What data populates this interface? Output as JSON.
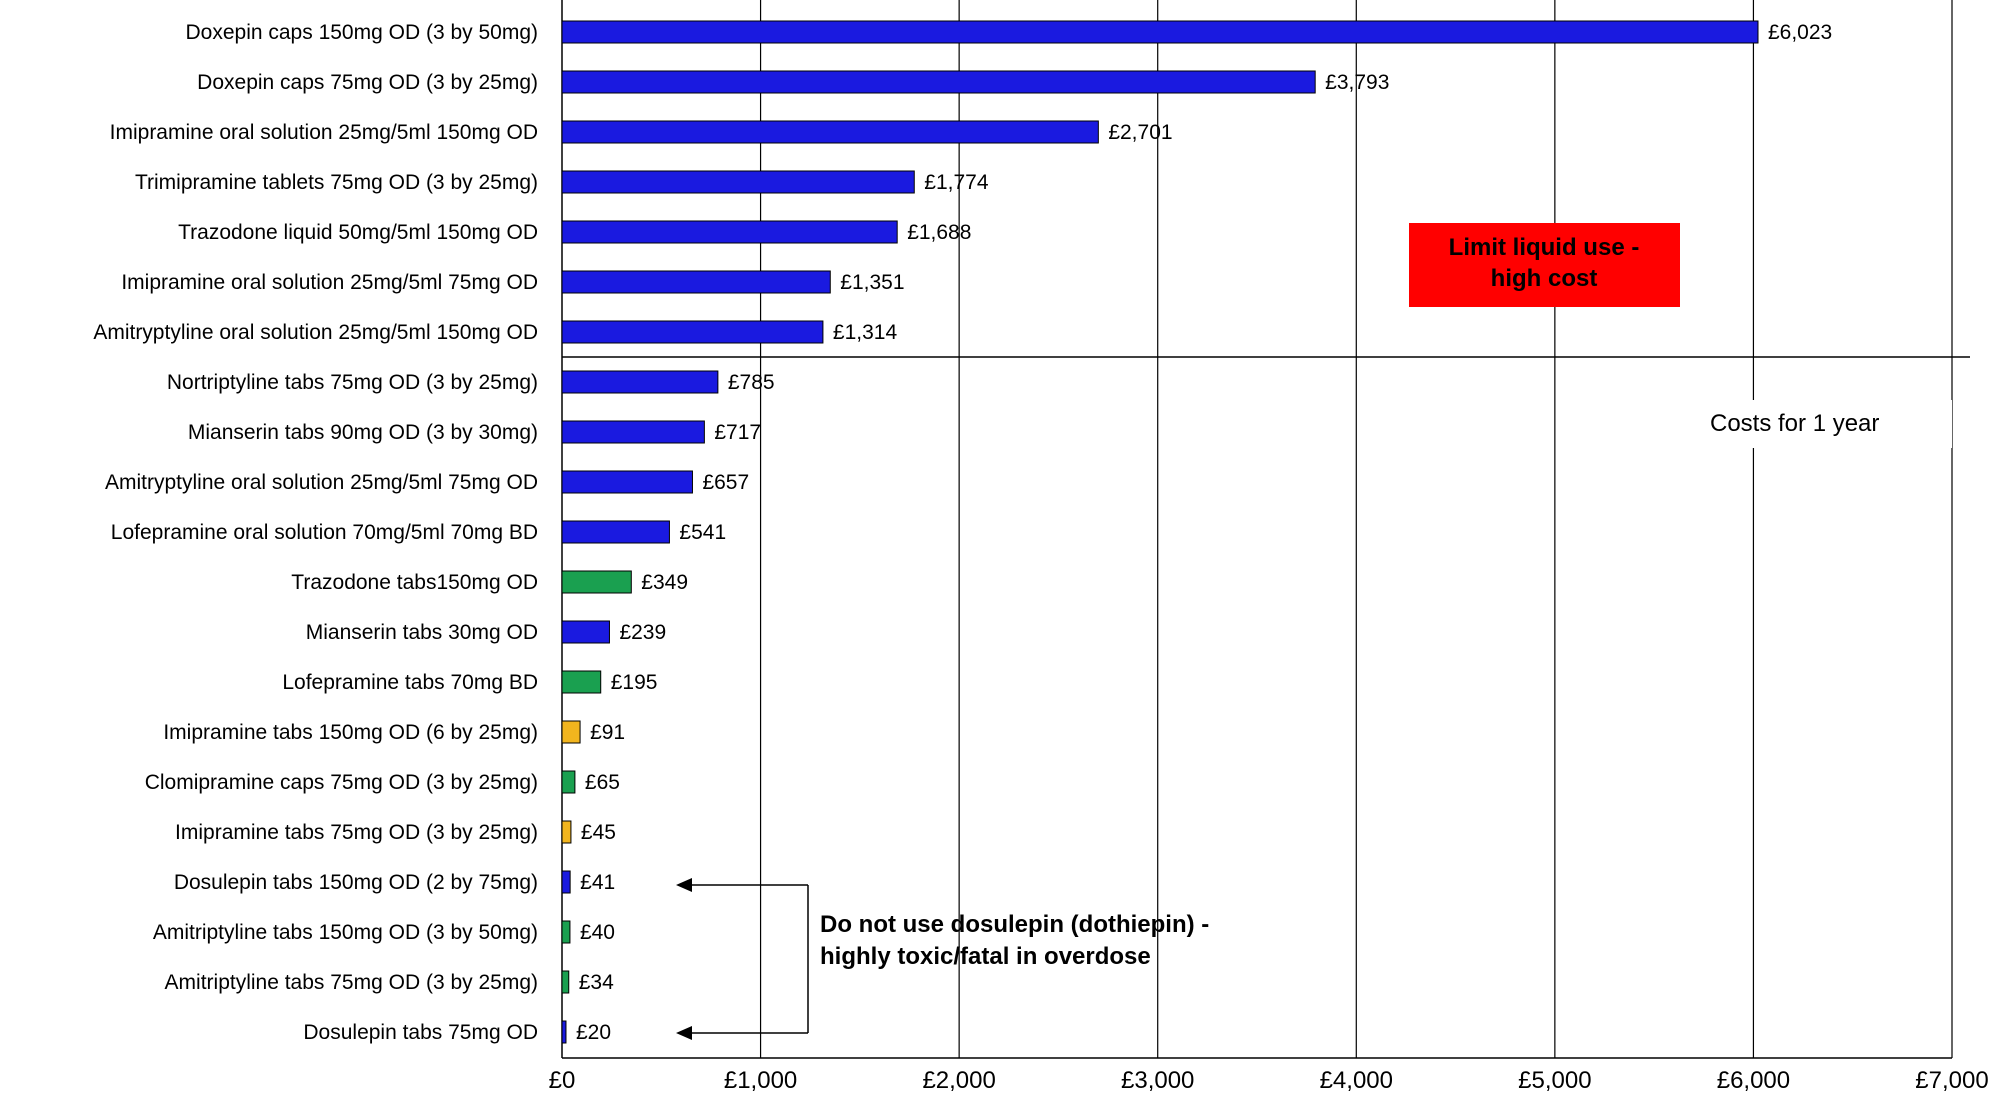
{
  "chart_data": {
    "type": "bar",
    "orientation": "horizontal",
    "xlim": [
      0,
      7000
    ],
    "x_ticks": [
      "£0",
      "£1,000",
      "£2,000",
      "£3,000",
      "£4,000",
      "£5,000",
      "£6,000",
      "£7,000"
    ],
    "grid": true,
    "categories": [
      "Doxepin caps 150mg OD (3 by 50mg)",
      "Doxepin caps 75mg OD (3 by 25mg)",
      "Imipramine oral solution 25mg/5ml 150mg OD",
      "Trimipramine tablets 75mg OD (3 by 25mg)",
      "Trazodone liquid 50mg/5ml 150mg OD",
      "Imipramine oral solution 25mg/5ml 75mg OD",
      "Amitryptyline oral solution 25mg/5ml 150mg OD",
      "Nortriptyline tabs 75mg OD (3 by 25mg)",
      "Mianserin tabs 90mg OD (3 by 30mg)",
      "Amitryptyline oral solution 25mg/5ml 75mg OD",
      "Lofepramine oral solution 70mg/5ml 70mg BD",
      "Trazodone tabs150mg OD",
      "Mianserin tabs  30mg OD",
      "Lofepramine tabs 70mg BD",
      "Imipramine tabs 150mg OD (6 by 25mg)",
      "Clomipramine caps 75mg OD (3 by 25mg)",
      "Imipramine tabs 75mg OD (3 by 25mg)",
      "Dosulepin tabs 150mg OD (2 by 75mg)",
      "Amitriptyline tabs  150mg OD (3 by 50mg)",
      "Amitriptyline tabs 75mg OD (3 by 25mg)",
      "Dosulepin tabs 75mg OD"
    ],
    "values": [
      6023,
      3793,
      2701,
      1774,
      1688,
      1351,
      1314,
      785,
      717,
      657,
      541,
      349,
      239,
      195,
      91,
      65,
      45,
      41,
      40,
      34,
      20
    ],
    "value_labels": [
      "£6,023",
      "£3,793",
      "£2,701",
      "£1,774",
      "£1,688",
      "£1,351",
      "£1,314",
      "£785",
      "£717",
      "£657",
      "£541",
      "£349",
      "£239",
      "£195",
      "£91",
      "£65",
      "£45",
      "£41",
      "£40",
      "£34",
      "£20"
    ],
    "bar_colors": [
      "#1a1ae0",
      "#1a1ae0",
      "#1a1ae0",
      "#1a1ae0",
      "#1a1ae0",
      "#1a1ae0",
      "#1a1ae0",
      "#1a1ae0",
      "#1a1ae0",
      "#1a1ae0",
      "#1a1ae0",
      "#1aa050",
      "#1a1ae0",
      "#1aa050",
      "#f2b51e",
      "#1aa050",
      "#f2b51e",
      "#1a1ae0",
      "#1aa050",
      "#1aa050",
      "#1a1ae0"
    ],
    "annotations": {
      "liquid_note": "Limit liquid use - high cost",
      "liquid_note_lines": [
        "Limit liquid use -",
        "high cost"
      ],
      "period_note": "Costs for 1 year",
      "dosulepin_note_lines": [
        "Do not use dosulepin (dothiepin) -",
        "highly toxic/fatal in overdose"
      ]
    }
  },
  "colors": {
    "blue_bar": "#1a1ae0",
    "green_bar": "#1aa050",
    "amber_bar": "#f2b51e",
    "alert_box": "#ff0000"
  }
}
